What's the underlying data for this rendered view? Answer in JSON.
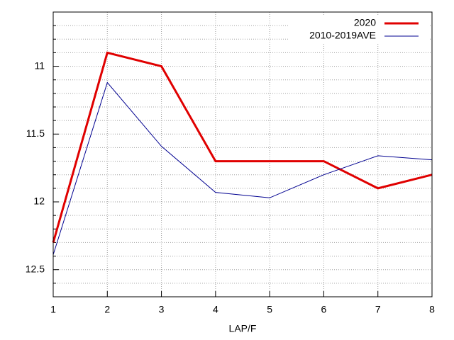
{
  "chart_data": {
    "type": "line",
    "xlabel": "LAP/F",
    "x": [
      1,
      2,
      3,
      4,
      5,
      6,
      7,
      8
    ],
    "series": [
      {
        "name": "2020",
        "color": "#e00000",
        "width": 3,
        "values": [
          12.3,
          10.9,
          11.0,
          11.7,
          11.7,
          11.7,
          11.9,
          11.8
        ]
      },
      {
        "name": "2010-2019AVE",
        "color": "#000090",
        "width": 1,
        "values": [
          12.39,
          11.12,
          11.59,
          11.93,
          11.97,
          11.8,
          11.66,
          11.69
        ]
      }
    ],
    "xlim": [
      1,
      8
    ],
    "xticks": [
      1,
      2,
      3,
      4,
      5,
      6,
      7,
      8
    ],
    "ylim": [
      10.6,
      12.7
    ],
    "y_reversed": true,
    "yticks": [
      11,
      11.5,
      12,
      12.5
    ],
    "yminorticks": [
      10.7,
      10.8,
      10.9,
      11.1,
      11.2,
      11.3,
      11.4,
      11.6,
      11.7,
      11.8,
      11.9,
      12.1,
      12.2,
      12.3,
      12.4,
      12.6
    ],
    "grid": true,
    "legend": "top-right"
  }
}
